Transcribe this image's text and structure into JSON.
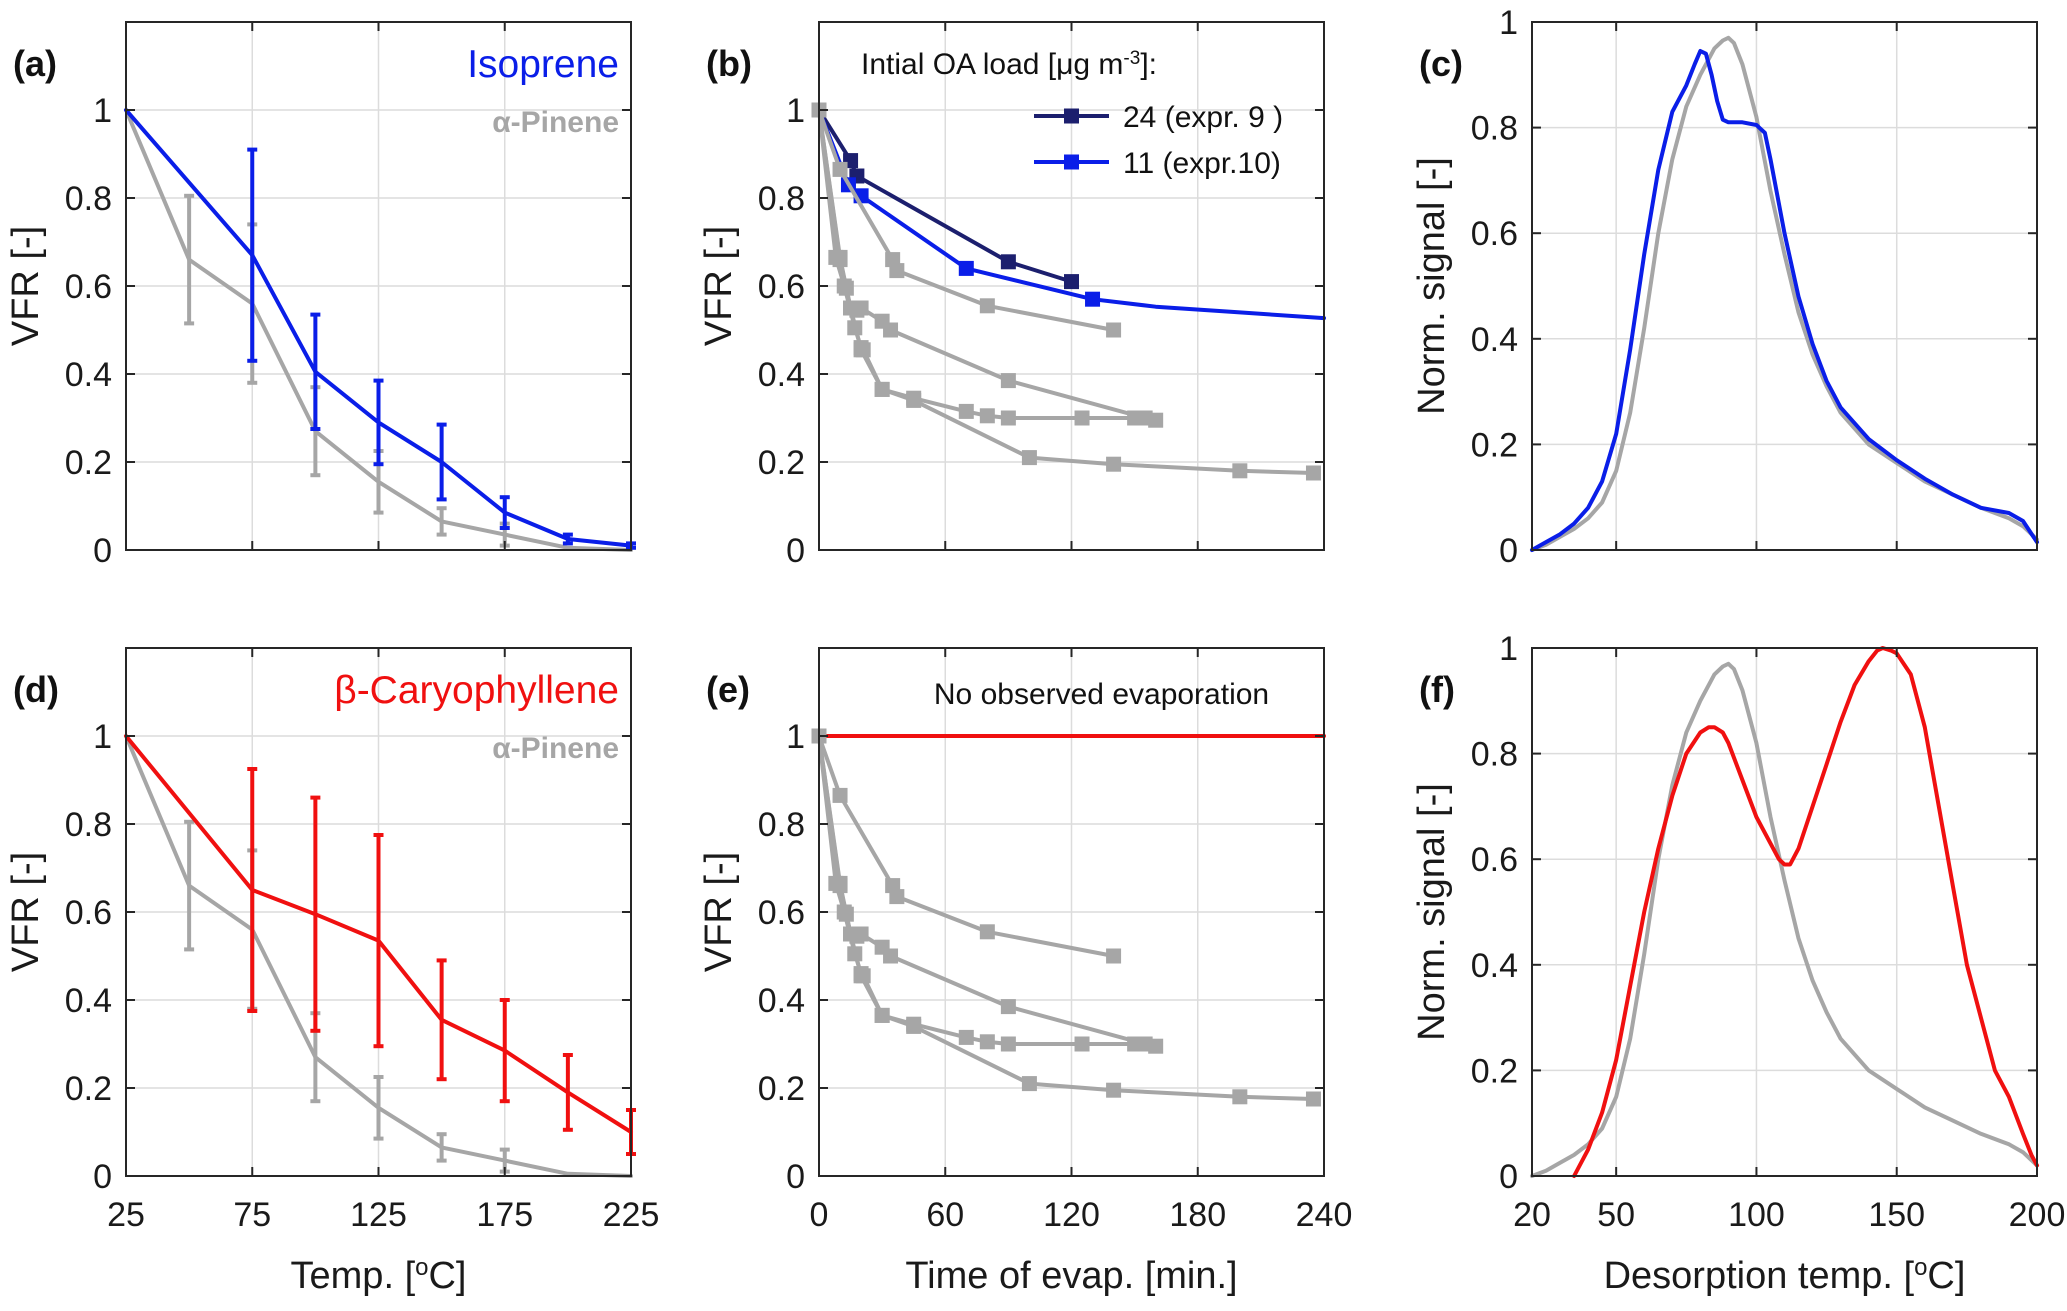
{
  "colors": {
    "isoprene": "#0a1ee8",
    "caryophyllene": "#f01010",
    "pinene": "#a6a6a6",
    "expr9": "#1c1f6e",
    "expr10": "#0a1ee8",
    "grid": "#dcdcdc",
    "axis": "#262626"
  },
  "chart_data": [
    {
      "id": "a",
      "type": "line",
      "panel_label": "(a)",
      "xlabel": "",
      "ylabel": "VFR [-]",
      "xlim": [
        25,
        225
      ],
      "ylim": [
        0,
        1.2
      ],
      "xticks": [
        25,
        75,
        125,
        175,
        225
      ],
      "yticks": [
        0,
        0.2,
        0.4,
        0.6,
        0.8,
        1
      ],
      "show_xtick_labels": false,
      "grid": true,
      "annotations": [
        {
          "text": "Isoprene",
          "color": "#0a1ee8",
          "size": "large"
        },
        {
          "text": "α-Pinene",
          "color": "#a6a6a6",
          "size": "small"
        }
      ],
      "series": [
        {
          "name": "α-Pinene",
          "color": "#a6a6a6",
          "x": [
            25,
            50,
            75,
            100,
            125,
            150,
            175,
            200,
            225
          ],
          "y": [
            1.0,
            0.66,
            0.56,
            0.27,
            0.155,
            0.065,
            0.035,
            0.005,
            0.0
          ],
          "err": [
            0,
            0.145,
            0.18,
            0.1,
            0.07,
            0.03,
            0.025,
            0,
            0
          ]
        },
        {
          "name": "Isoprene",
          "color": "#0a1ee8",
          "x": [
            25,
            75,
            100,
            125,
            150,
            175,
            200,
            225
          ],
          "y": [
            1.0,
            0.67,
            0.405,
            0.29,
            0.2,
            0.085,
            0.025,
            0.01
          ],
          "err": [
            0,
            0.24,
            0.13,
            0.095,
            0.085,
            0.035,
            0.01,
            0.005
          ]
        }
      ]
    },
    {
      "id": "b",
      "type": "line",
      "panel_label": "(b)",
      "xlabel": "",
      "ylabel": "VFR [-]",
      "xlim": [
        0,
        240
      ],
      "ylim": [
        0,
        1.2
      ],
      "xticks": [
        0,
        60,
        120,
        180,
        240
      ],
      "yticks": [
        0,
        0.2,
        0.4,
        0.6,
        0.8,
        1
      ],
      "show_xtick_labels": false,
      "grid": true,
      "legend": {
        "title": "Intial OA load [μg m⁻³]:",
        "placement": "top-right",
        "entries": [
          {
            "text": "24 (expr. 9 )",
            "color": "#1c1f6e"
          },
          {
            "text": "11 (expr.10)",
            "color": "#0a1ee8"
          }
        ]
      },
      "series": [
        {
          "name": "24 (expr. 9 )",
          "color": "#1c1f6e",
          "markers": true,
          "x": [
            0,
            15,
            18,
            90,
            120
          ],
          "y": [
            1.0,
            0.885,
            0.85,
            0.655,
            0.61
          ]
        },
        {
          "name": "11 (expr.10)",
          "color": "#0a1ee8",
          "markers": true,
          "x": [
            0,
            14,
            20,
            70,
            130
          ],
          "y": [
            1.0,
            0.83,
            0.805,
            0.64,
            0.57
          ]
        },
        {
          "name": "",
          "color": "#0a1ee8",
          "markers": false,
          "x": [
            130,
            160,
            200,
            240
          ],
          "y": [
            0.57,
            0.553,
            0.54,
            0.527
          ]
        },
        {
          "name": "",
          "color": "#a6a6a6",
          "markers": true,
          "x": [
            0,
            10,
            35,
            37,
            80,
            140
          ],
          "y": [
            1.0,
            0.865,
            0.66,
            0.635,
            0.555,
            0.5
          ]
        },
        {
          "name": "",
          "color": "#a6a6a6",
          "markers": true,
          "x": [
            0,
            10,
            13,
            15,
            18,
            20,
            30,
            34,
            90,
            155,
            160
          ],
          "y": [
            1.0,
            0.665,
            0.595,
            0.55,
            0.545,
            0.55,
            0.52,
            0.5,
            0.385,
            0.3,
            0.295
          ]
        },
        {
          "name": "",
          "color": "#a6a6a6",
          "markers": true,
          "x": [
            0,
            8,
            12,
            17,
            20,
            21,
            30,
            45,
            70,
            80,
            90,
            125,
            150
          ],
          "y": [
            1.0,
            0.665,
            0.6,
            0.505,
            0.46,
            0.455,
            0.365,
            0.345,
            0.315,
            0.305,
            0.3,
            0.3,
            0.3
          ]
        },
        {
          "name": "",
          "color": "#a6a6a6",
          "markers": true,
          "x": [
            0,
            10,
            15,
            20,
            30,
            45,
            100,
            140,
            200,
            235
          ],
          "y": [
            1.0,
            0.66,
            0.55,
            0.455,
            0.365,
            0.34,
            0.21,
            0.195,
            0.18,
            0.175
          ]
        }
      ]
    },
    {
      "id": "c",
      "type": "line",
      "panel_label": "(c)",
      "xlabel": "",
      "ylabel": "Norm. signal [-]",
      "xlim": [
        20,
        200
      ],
      "ylim": [
        0,
        1
      ],
      "xticks": [
        50,
        100,
        150,
        200
      ],
      "yticks": [
        0,
        0.2,
        0.4,
        0.6,
        0.8,
        1
      ],
      "show_xtick_labels": false,
      "grid": true,
      "series": [
        {
          "name": "",
          "color": "#a6a6a6",
          "x": [
            20,
            25,
            30,
            35,
            40,
            45,
            50,
            55,
            60,
            65,
            70,
            75,
            80,
            85,
            88,
            90,
            92,
            95,
            100,
            105,
            110,
            115,
            120,
            125,
            130,
            140,
            150,
            160,
            170,
            180,
            190,
            195,
            200
          ],
          "y": [
            0.0,
            0.01,
            0.025,
            0.04,
            0.06,
            0.09,
            0.15,
            0.26,
            0.42,
            0.6,
            0.74,
            0.84,
            0.9,
            0.95,
            0.965,
            0.97,
            0.96,
            0.92,
            0.82,
            0.68,
            0.56,
            0.45,
            0.37,
            0.31,
            0.26,
            0.2,
            0.165,
            0.13,
            0.105,
            0.08,
            0.06,
            0.045,
            0.02
          ]
        },
        {
          "name": "",
          "color": "#0a1ee8",
          "x": [
            20,
            25,
            30,
            35,
            40,
            45,
            50,
            55,
            60,
            65,
            70,
            75,
            78,
            80,
            82,
            84,
            86,
            88,
            90,
            95,
            100,
            103,
            105,
            110,
            115,
            120,
            125,
            130,
            140,
            150,
            160,
            170,
            180,
            190,
            195,
            200
          ],
          "y": [
            0.0,
            0.015,
            0.03,
            0.05,
            0.08,
            0.13,
            0.22,
            0.38,
            0.56,
            0.72,
            0.83,
            0.88,
            0.92,
            0.945,
            0.94,
            0.9,
            0.85,
            0.815,
            0.81,
            0.81,
            0.805,
            0.79,
            0.74,
            0.6,
            0.48,
            0.39,
            0.32,
            0.27,
            0.21,
            0.17,
            0.135,
            0.105,
            0.08,
            0.07,
            0.055,
            0.015
          ]
        }
      ]
    },
    {
      "id": "d",
      "type": "line",
      "panel_label": "(d)",
      "xlabel": "Temp. [°C]",
      "ylabel": "VFR [-]",
      "xlim": [
        25,
        225
      ],
      "ylim": [
        0,
        1.2
      ],
      "xticks": [
        25,
        75,
        125,
        175,
        225
      ],
      "yticks": [
        0,
        0.2,
        0.4,
        0.6,
        0.8,
        1
      ],
      "show_xtick_labels": true,
      "grid": true,
      "annotations": [
        {
          "text": "β-Caryophyllene",
          "color": "#f01010",
          "size": "large"
        },
        {
          "text": "α-Pinene",
          "color": "#a6a6a6",
          "size": "small"
        }
      ],
      "series": [
        {
          "name": "α-Pinene",
          "color": "#a6a6a6",
          "x": [
            25,
            50,
            75,
            100,
            125,
            150,
            175,
            200,
            225
          ],
          "y": [
            1.0,
            0.66,
            0.56,
            0.27,
            0.155,
            0.065,
            0.035,
            0.005,
            0.0
          ],
          "err": [
            0,
            0.145,
            0.18,
            0.1,
            0.07,
            0.03,
            0.025,
            0,
            0
          ]
        },
        {
          "name": "β-Caryophyllene",
          "color": "#f01010",
          "x": [
            25,
            75,
            100,
            125,
            150,
            175,
            200,
            225
          ],
          "y": [
            1.0,
            0.65,
            0.595,
            0.535,
            0.355,
            0.285,
            0.19,
            0.1
          ],
          "err": [
            0,
            0.275,
            0.265,
            0.24,
            0.135,
            0.115,
            0.085,
            0.05
          ]
        }
      ]
    },
    {
      "id": "e",
      "type": "line",
      "panel_label": "(e)",
      "xlabel": "Time of evap. [min.]",
      "ylabel": "VFR [-]",
      "xlim": [
        0,
        240
      ],
      "ylim": [
        0,
        1.2
      ],
      "xticks": [
        0,
        60,
        120,
        180,
        240
      ],
      "yticks": [
        0,
        0.2,
        0.4,
        0.6,
        0.8,
        1
      ],
      "show_xtick_labels": true,
      "grid": true,
      "annotations": [
        {
          "text": "No observed evaporation",
          "color": "#111111",
          "size": "small"
        }
      ],
      "series": [
        {
          "name": "",
          "color": "#f01010",
          "markers": false,
          "x": [
            0,
            240
          ],
          "y": [
            1.0,
            1.0
          ]
        },
        {
          "name": "",
          "color": "#a6a6a6",
          "markers": true,
          "x": [
            0,
            10,
            35,
            37,
            80,
            140
          ],
          "y": [
            1.0,
            0.865,
            0.66,
            0.635,
            0.555,
            0.5
          ]
        },
        {
          "name": "",
          "color": "#a6a6a6",
          "markers": true,
          "x": [
            0,
            10,
            13,
            15,
            18,
            20,
            30,
            34,
            90,
            155,
            160
          ],
          "y": [
            1.0,
            0.665,
            0.595,
            0.55,
            0.545,
            0.55,
            0.52,
            0.5,
            0.385,
            0.3,
            0.295
          ]
        },
        {
          "name": "",
          "color": "#a6a6a6",
          "markers": true,
          "x": [
            0,
            8,
            12,
            17,
            20,
            21,
            30,
            45,
            70,
            80,
            90,
            125,
            150
          ],
          "y": [
            1.0,
            0.665,
            0.6,
            0.505,
            0.46,
            0.455,
            0.365,
            0.345,
            0.315,
            0.305,
            0.3,
            0.3,
            0.3
          ]
        },
        {
          "name": "",
          "color": "#a6a6a6",
          "markers": true,
          "x": [
            0,
            10,
            15,
            20,
            30,
            45,
            100,
            140,
            200,
            235
          ],
          "y": [
            1.0,
            0.66,
            0.55,
            0.455,
            0.365,
            0.34,
            0.21,
            0.195,
            0.18,
            0.175
          ]
        }
      ]
    },
    {
      "id": "f",
      "type": "line",
      "panel_label": "(f)",
      "xlabel": "Desorption temp. [°C]",
      "ylabel": "Norm. signal [-]",
      "xlim": [
        20,
        200
      ],
      "ylim": [
        0,
        1
      ],
      "xticks": [
        20,
        50,
        100,
        150,
        200
      ],
      "yticks": [
        0,
        0.2,
        0.4,
        0.6,
        0.8,
        1
      ],
      "show_xtick_labels": true,
      "grid": true,
      "series": [
        {
          "name": "",
          "color": "#a6a6a6",
          "x": [
            20,
            25,
            30,
            35,
            40,
            45,
            50,
            55,
            60,
            65,
            70,
            75,
            80,
            85,
            88,
            90,
            92,
            95,
            100,
            105,
            110,
            115,
            120,
            125,
            130,
            140,
            150,
            160,
            170,
            180,
            190,
            195,
            200
          ],
          "y": [
            0.0,
            0.01,
            0.025,
            0.04,
            0.06,
            0.09,
            0.15,
            0.26,
            0.42,
            0.6,
            0.74,
            0.84,
            0.9,
            0.95,
            0.965,
            0.97,
            0.96,
            0.92,
            0.82,
            0.68,
            0.56,
            0.45,
            0.37,
            0.31,
            0.26,
            0.2,
            0.165,
            0.13,
            0.105,
            0.08,
            0.06,
            0.045,
            0.02
          ]
        },
        {
          "name": "",
          "color": "#f01010",
          "x": [
            35,
            40,
            45,
            50,
            55,
            60,
            65,
            70,
            75,
            80,
            83,
            85,
            88,
            90,
            95,
            100,
            105,
            108,
            110,
            112,
            115,
            120,
            125,
            130,
            135,
            140,
            143,
            145,
            148,
            150,
            155,
            160,
            165,
            170,
            175,
            180,
            185,
            190,
            195,
            198,
            200
          ],
          "y": [
            0.0,
            0.05,
            0.12,
            0.22,
            0.36,
            0.5,
            0.62,
            0.72,
            0.8,
            0.84,
            0.85,
            0.85,
            0.84,
            0.82,
            0.75,
            0.68,
            0.63,
            0.6,
            0.59,
            0.59,
            0.62,
            0.7,
            0.78,
            0.86,
            0.93,
            0.975,
            0.995,
            1.0,
            0.995,
            0.99,
            0.95,
            0.85,
            0.7,
            0.55,
            0.4,
            0.3,
            0.2,
            0.15,
            0.08,
            0.04,
            0.02
          ]
        }
      ]
    }
  ]
}
